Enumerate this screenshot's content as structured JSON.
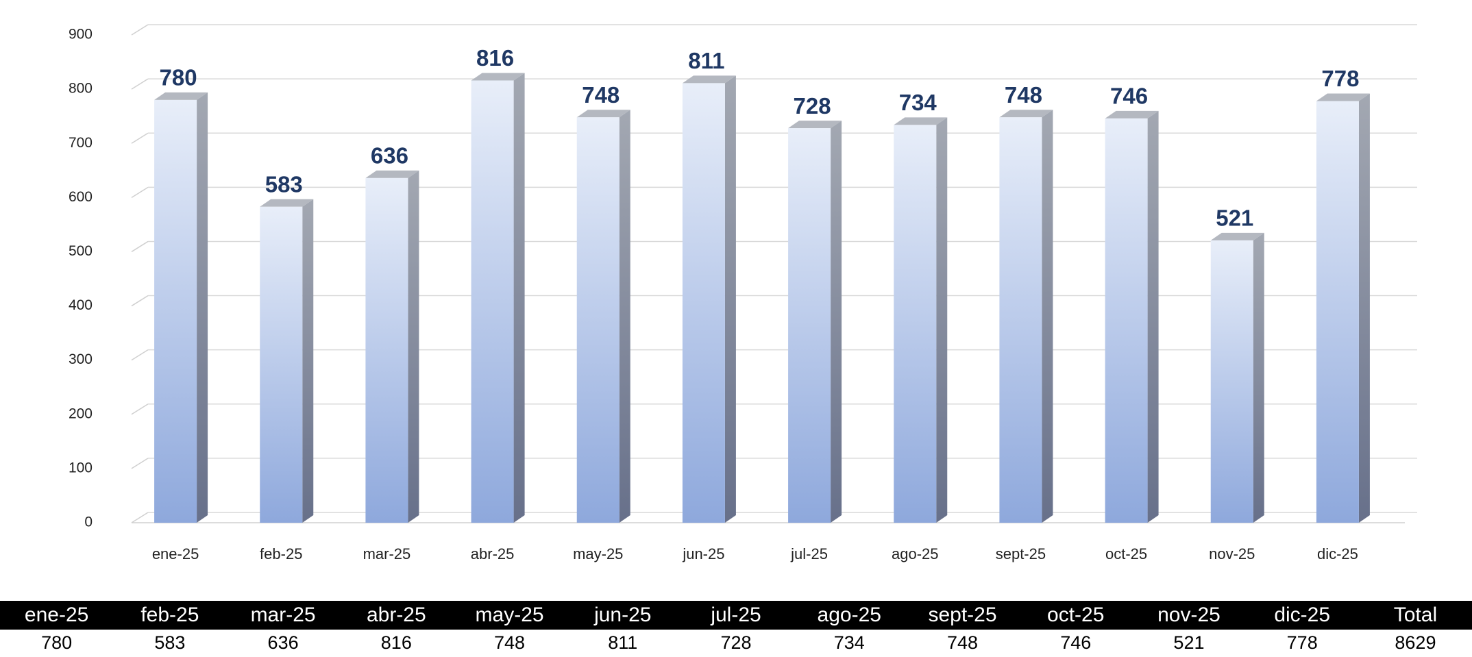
{
  "chart_data": {
    "type": "bar3d",
    "categories": [
      "ene-25",
      "feb-25",
      "mar-25",
      "abr-25",
      "may-25",
      "jun-25",
      "jul-25",
      "ago-25",
      "sept-25",
      "oct-25",
      "nov-25",
      "dic-25"
    ],
    "values": [
      780,
      583,
      636,
      816,
      748,
      811,
      728,
      734,
      748,
      746,
      521,
      778
    ],
    "ylim": [
      0,
      900
    ],
    "yticks": [
      0,
      100,
      200,
      300,
      400,
      500,
      600,
      700,
      800,
      900
    ],
    "grid": true,
    "color": "#8ea8dc",
    "label_color": "#1f3864"
  },
  "table": {
    "header": [
      "ene-25",
      "feb-25",
      "mar-25",
      "abr-25",
      "may-25",
      "jun-25",
      "jul-25",
      "ago-25",
      "sept-25",
      "oct-25",
      "nov-25",
      "dic-25",
      "Total"
    ],
    "rows": [
      [
        "780",
        "583",
        "636",
        "816",
        "748",
        "811",
        "728",
        "734",
        "748",
        "746",
        "521",
        "778",
        "8629"
      ]
    ]
  }
}
